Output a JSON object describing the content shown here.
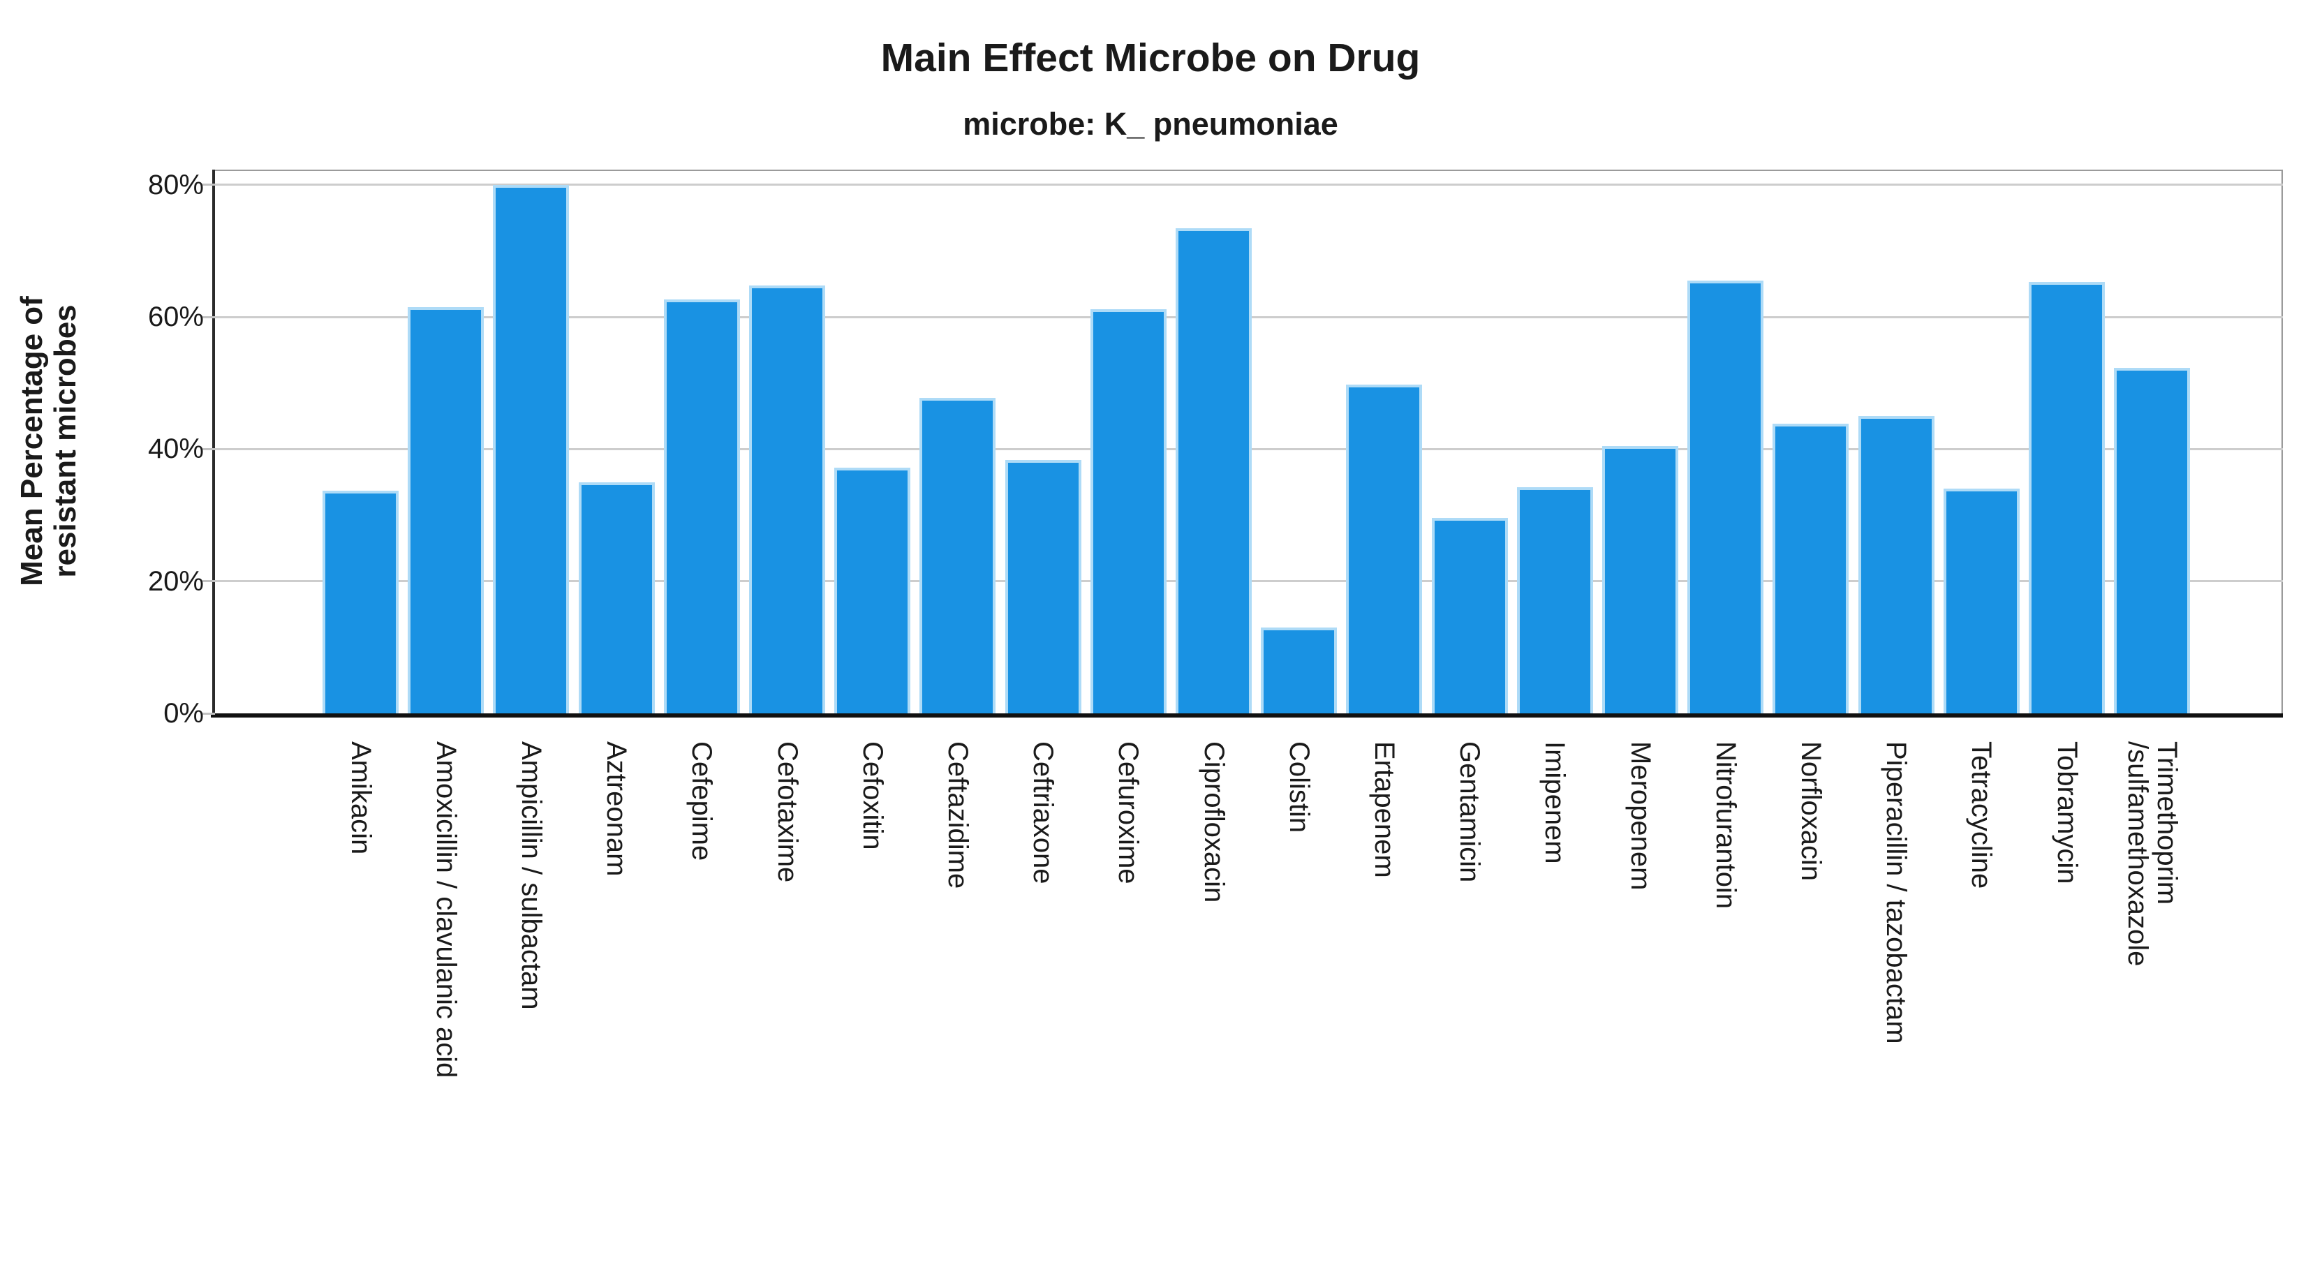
{
  "chart_data": {
    "type": "bar",
    "title": "Main Effect Microbe on Drug",
    "subtitle": "microbe: K_ pneumoniae",
    "ylabel": "Mean Percentage of\nresistant microbes",
    "xlabel": "",
    "categories": [
      "Amikacin",
      "Amoxicillin / clavulanic acid",
      "Ampicillin / sulbactam",
      "Aztreonam",
      "Cefepime",
      "Cefotaxime",
      "Cefoxitin",
      "Ceftazidime",
      "Ceftriaxone",
      "Cefuroxime",
      "Ciprofloxacin",
      "Colistin",
      "Ertapenem",
      "Gentamicin",
      "Imipenem",
      "Meropenem",
      "Nitrofurantoin",
      "Norfloxacin",
      "Piperacillin / tazobactam",
      "Tetracycline",
      "Tobramycin",
      "Trimethoprim\n/sulfamethoxazole"
    ],
    "values": [
      33.7,
      61.5,
      80.0,
      35.0,
      62.7,
      64.8,
      37.2,
      47.8,
      38.4,
      61.2,
      73.4,
      13.0,
      49.8,
      29.6,
      34.2,
      40.5,
      65.5,
      43.8,
      45.0,
      34.0,
      65.3,
      52.3
    ],
    "ytick_values": [
      0,
      20,
      40,
      60,
      80
    ],
    "ytick_labels": [
      "0%",
      "20%",
      "40%",
      "60%",
      "80%"
    ],
    "ylim": [
      0,
      82.3
    ],
    "grid": true,
    "legend": "none",
    "bar_color": "#1992E3",
    "bar_border_color": "#AEDBF7"
  }
}
